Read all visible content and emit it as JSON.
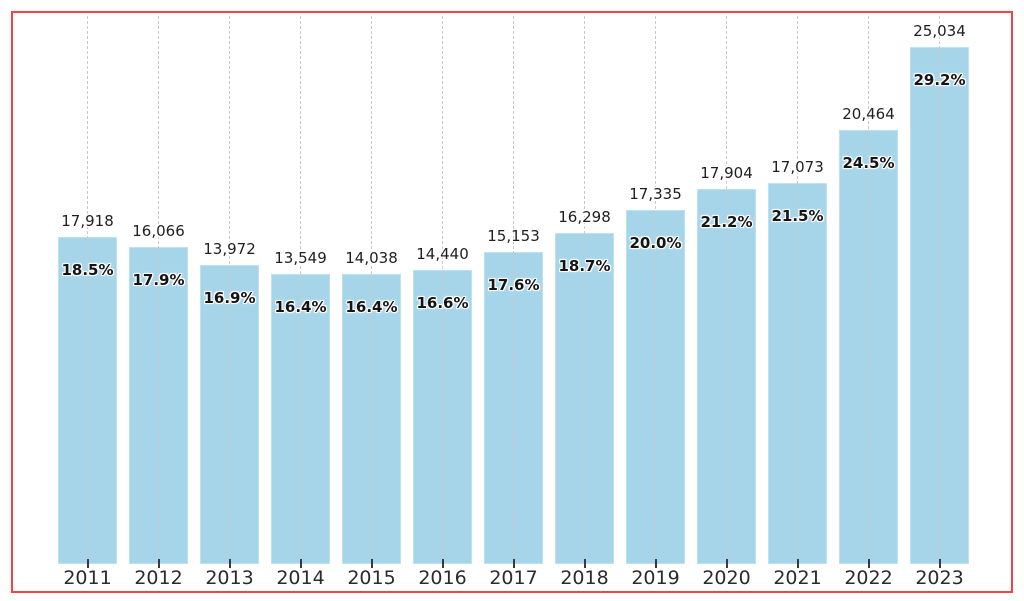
{
  "chart_data": {
    "type": "bar",
    "description": "Annual counts with percentage share; bar height encodes the percentage, count shown above each bar",
    "categories": [
      "2011",
      "2012",
      "2013",
      "2014",
      "2015",
      "2016",
      "2017",
      "2018",
      "2019",
      "2020",
      "2021",
      "2022",
      "2023"
    ],
    "series": [
      {
        "name": "count",
        "values": [
          17918,
          16066,
          13972,
          13549,
          14038,
          14440,
          15153,
          16298,
          17335,
          17904,
          17073,
          20464,
          25034
        ]
      },
      {
        "name": "percent",
        "values": [
          18.5,
          17.9,
          16.9,
          16.4,
          16.4,
          16.6,
          17.6,
          18.7,
          20.0,
          21.2,
          21.5,
          24.5,
          29.2
        ]
      }
    ],
    "count_labels": [
      "17,918",
      "16,066",
      "13,972",
      "13,549",
      "14,038",
      "14,440",
      "15,153",
      "16,298",
      "17,335",
      "17,904",
      "17,073",
      "20,464",
      "25,034"
    ],
    "percent_labels": [
      "18.5%",
      "17.9%",
      "16.9%",
      "16.4%",
      "16.4%",
      "16.6%",
      "17.6%",
      "18.7%",
      "20.0%",
      "21.2%",
      "21.5%",
      "24.5%",
      "29.2%"
    ],
    "title": "",
    "xlabel": "",
    "ylabel": "",
    "ylim": [
      0,
      31.5
    ],
    "grid": "vertical-dashed",
    "legend": "none",
    "colors": {
      "bar_fill": "#a6d5ea",
      "bar_edge": "#bce1f0",
      "gridline": "#c9c9c9",
      "label_text": "#1f1f1f",
      "axis_tick": "#3a3a3a",
      "frame_border": "#f54242",
      "background": "#ffffff"
    }
  }
}
